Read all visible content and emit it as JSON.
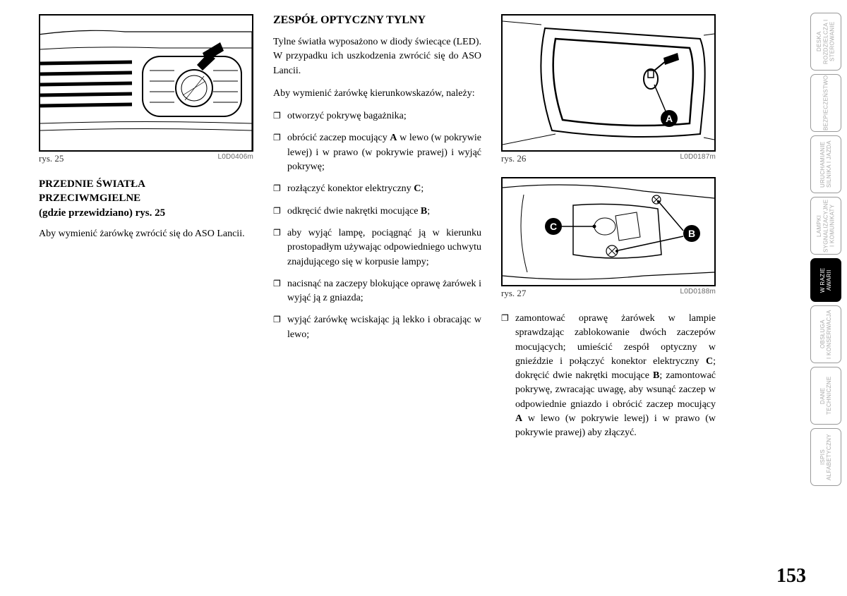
{
  "page_number": "153",
  "col1": {
    "fig_label": "rys. 25",
    "fig_code": "L0D0406m",
    "heading_line1": "PRZEDNIE ŚWIATŁA",
    "heading_line2": "PRZECIWMGIELNE",
    "heading_line3": "(gdzie przewidziano) rys. 25",
    "body": "Aby wymienić żarówkę zwrócić się do ASO Lancii."
  },
  "col2": {
    "heading": "ZESPÓŁ OPTYCZNY TYLNY",
    "p1": "Tylne światła wyposażono w diody świecące (LED). W przypadku ich uszkodzenia zwrócić się do ASO Lancii.",
    "p2": "Aby wymienić żarówkę kierunkowskazów, należy:",
    "bullets": [
      "otworzyć pokrywę bagażnika;",
      "obrócić zaczep mocujący <b>A</b> w lewo (w pokrywie lewej) i w prawo (w pokrywie prawej) i wyjąć pokrywę;",
      "rozłączyć konektor elektryczny <b>C</b>;",
      "odkręcić dwie nakrętki mocujące <b>B</b>;",
      "aby wyjąć lampę, pociągnąć ją w kierunku prostopadłym używając odpowiedniego uchwytu znajdującego się w korpusie lampy;",
      "nacisnąć na zaczepy blokujące oprawę żarówek i wyjąć ją z gniazda;",
      "wyjąć żarówkę wciskając ją lekko i obracając w lewo;"
    ]
  },
  "col3": {
    "fig26_label": "rys. 26",
    "fig26_code": "L0D0187m",
    "fig27_label": "rys. 27",
    "fig27_code": "L0D0188m",
    "bullet": "zamontować oprawę żarówek w lampie sprawdzając zablokowanie dwóch zaczepów mocujących; umieścić zespół optyczny w gnieździe i połączyć konektor elektryczny <b>C</b>; dokręcić dwie nakrętki mocujące <b>B</b>; zamontować pokrywę, zwracając uwagę, aby wsunąć zaczep w odpowiednie gniazdo i obrócić zaczep mocujący <b>A</b> w lewo (w pokrywie lewej) i w prawo (w pokrywie prawej) aby złączyć."
  },
  "tabs": [
    {
      "label": "DESKA\nROZDZIELCZA I\nSTEROWANIE",
      "active": false
    },
    {
      "label": "BEZPIECZEŃSTWO",
      "active": false
    },
    {
      "label": "URUCHAMIANIE\nSILNIKA I JAZDA",
      "active": false
    },
    {
      "label": "LAMPKI\nSYGNALIZACYJNE\nI KOMUNIKATY",
      "active": false
    },
    {
      "label": "W RAZIE\nAWARII",
      "active": true,
      "short": true
    },
    {
      "label": "OBSŁUGA\nI KONSERWACJA",
      "active": false
    },
    {
      "label": "DANE\nTECHNICZNE",
      "active": false
    },
    {
      "label": "ISPIS\nALFABETYCZNY",
      "active": false
    }
  ]
}
